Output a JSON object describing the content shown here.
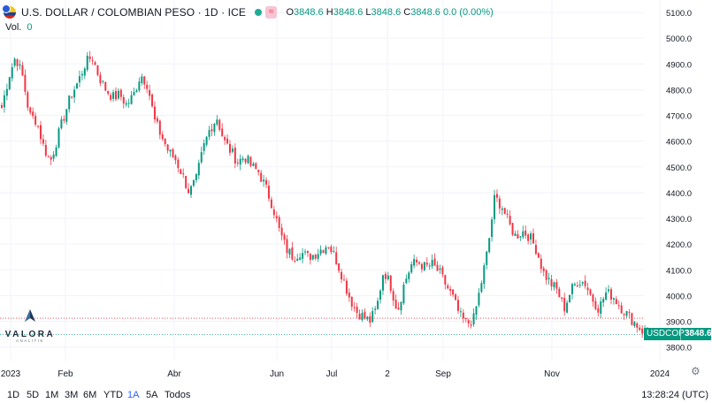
{
  "header": {
    "title": "U.S. DOLLAR / COLOMBIAN PESO · 1D · ICE",
    "badge": "≈",
    "open_label": "O",
    "open": "3848.6",
    "high_label": "H",
    "high": "3848.6",
    "low_label": "L",
    "low": "3848.6",
    "close_label": "C",
    "close": "3848.6",
    "change": "0.0 (0.00%)"
  },
  "volume": {
    "label": "Vol.",
    "value": "0"
  },
  "logo": {
    "name": "VALORA",
    "sub": "ANALITIK"
  },
  "price_tag": {
    "symbol": "USDCOP",
    "value": "3848.6"
  },
  "timeframes": [
    "1D",
    "5D",
    "1M",
    "3M",
    "6M",
    "YTD",
    "1A",
    "5A",
    "Todos"
  ],
  "active_timeframe": "1A",
  "clock": "13:28:24 (UTC)",
  "colors": {
    "up": "#089981",
    "down": "#f23645",
    "grid": "#e0e3eb",
    "text": "#131722",
    "prev_close_line": "#f23645"
  },
  "chart_data": {
    "type": "candlestick",
    "title": "U.S. DOLLAR / COLOMBIAN PESO · 1D · ICE",
    "ylim": [
      3758,
      5170
    ],
    "y_ticks": [
      "5100.0",
      "5000.0",
      "4900.0",
      "4800.0",
      "4700.0",
      "4600.0",
      "4500.0",
      "4400.0",
      "4300.0",
      "4200.0",
      "4100.0",
      "4000.0",
      "3900.0",
      "3800.0"
    ],
    "x_ticks": [
      "2023",
      "Feb",
      "Abr",
      "Jun",
      "Jul",
      "2",
      "Sep",
      "Nov",
      "2024"
    ],
    "last_price": 3848.6,
    "previous_close_line": 3912,
    "close_path": [
      4730,
      4850,
      4930,
      4850,
      4700,
      4680,
      4580,
      4520,
      4610,
      4700,
      4780,
      4830,
      4900,
      4930,
      4850,
      4800,
      4770,
      4780,
      4740,
      4780,
      4860,
      4820,
      4680,
      4620,
      4560,
      4530,
      4470,
      4400,
      4450,
      4570,
      4650,
      4690,
      4600,
      4560,
      4520,
      4540,
      4500,
      4480,
      4420,
      4350,
      4250,
      4180,
      4150,
      4170,
      4150,
      4160,
      4180,
      4200,
      4150,
      4080,
      4000,
      3940,
      3920,
      3900,
      3950,
      4100,
      4040,
      3940,
      4050,
      4120,
      4130,
      4110,
      4120,
      4090,
      4040,
      3990,
      3920,
      3890,
      3910,
      4040,
      4180,
      4380,
      4350,
      4280,
      4230,
      4250,
      4230,
      4180,
      4090,
      4050,
      4020,
      3950,
      4020,
      4060,
      4050,
      3990,
      3950,
      4010,
      4000,
      3960,
      3930,
      3900,
      3870,
      3848.6
    ]
  }
}
